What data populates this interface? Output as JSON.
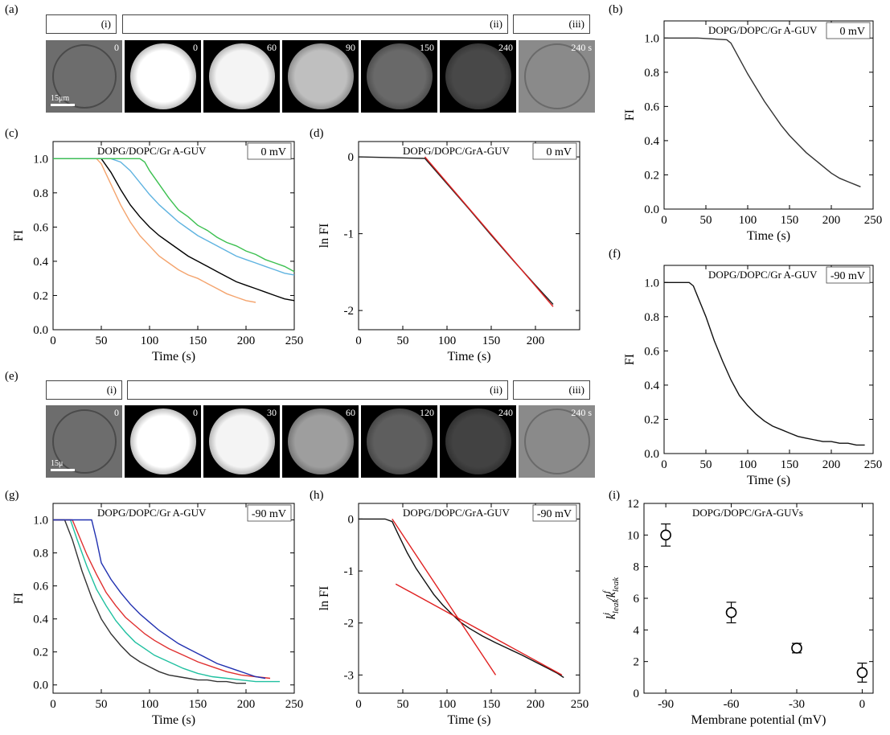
{
  "panels": {
    "a": "(a)",
    "b": "(b)",
    "c": "(c)",
    "d": "(d)",
    "e": "(e)",
    "f": "(f)",
    "g": "(g)",
    "h": "(h)",
    "i": "(i)"
  },
  "image_row_a": {
    "header_i": "(i)",
    "header_ii": "(ii)",
    "header_iii": "(iii)",
    "phase_left_time": "0",
    "scale_label": "15μm",
    "frames": [
      {
        "t": "0",
        "b": 1.0
      },
      {
        "t": "60",
        "b": 0.95
      },
      {
        "t": "90",
        "b": 0.7
      },
      {
        "t": "150",
        "b": 0.3
      },
      {
        "t": "240",
        "b": 0.15
      }
    ],
    "phase_right_time": "240 s"
  },
  "image_row_e": {
    "header_i": "(i)",
    "header_ii": "(ii)",
    "header_iii": "(iii)",
    "phase_left_time": "0",
    "scale_label": "15μ",
    "frames": [
      {
        "t": "0",
        "b": 1.0
      },
      {
        "t": "30",
        "b": 0.95
      },
      {
        "t": "60",
        "b": 0.55
      },
      {
        "t": "120",
        "b": 0.25
      },
      {
        "t": "240",
        "b": 0.12
      }
    ],
    "phase_right_time": "240 s"
  },
  "chart_data": [
    {
      "id": "b",
      "type": "line",
      "annotation": "DOPG/DOPC/Gr A-GUV",
      "potential": "0 mV",
      "xlabel": "Time (s)",
      "ylabel": "FI",
      "xlim": [
        0,
        250
      ],
      "ylim": [
        0,
        1.1
      ],
      "xticks": [
        0,
        50,
        100,
        150,
        200,
        250
      ],
      "yticks": [
        0.0,
        0.2,
        0.4,
        0.6,
        0.8,
        1.0
      ],
      "series": [
        {
          "color": "#333333",
          "x": [
            0,
            40,
            75,
            80,
            90,
            100,
            110,
            120,
            130,
            140,
            150,
            160,
            170,
            180,
            190,
            200,
            210,
            220,
            230,
            235
          ],
          "y": [
            1.0,
            1.0,
            0.99,
            0.97,
            0.88,
            0.79,
            0.71,
            0.63,
            0.56,
            0.49,
            0.43,
            0.38,
            0.33,
            0.29,
            0.25,
            0.21,
            0.18,
            0.16,
            0.14,
            0.13
          ]
        }
      ]
    },
    {
      "id": "c",
      "type": "line",
      "annotation": "DOPG/DOPC/Gr A-GUV",
      "potential": "0 mV",
      "xlabel": "Time (s)",
      "ylabel": "FI",
      "xlim": [
        0,
        250
      ],
      "ylim": [
        0,
        1.1
      ],
      "xticks": [
        0,
        50,
        100,
        150,
        200,
        250
      ],
      "yticks": [
        0.0,
        0.2,
        0.4,
        0.6,
        0.8,
        1.0
      ],
      "series": [
        {
          "color": "#f4a46e",
          "x": [
            0,
            45,
            50,
            60,
            70,
            80,
            90,
            100,
            110,
            120,
            130,
            140,
            150,
            160,
            170,
            180,
            190,
            200,
            210
          ],
          "y": [
            1.0,
            1.0,
            0.97,
            0.85,
            0.73,
            0.63,
            0.55,
            0.49,
            0.43,
            0.39,
            0.35,
            0.32,
            0.3,
            0.27,
            0.24,
            0.21,
            0.19,
            0.17,
            0.16
          ]
        },
        {
          "color": "#000000",
          "x": [
            0,
            50,
            55,
            60,
            70,
            80,
            90,
            100,
            110,
            120,
            130,
            140,
            150,
            160,
            170,
            180,
            190,
            200,
            210,
            220,
            230,
            240,
            250
          ],
          "y": [
            1.0,
            1.0,
            0.96,
            0.92,
            0.82,
            0.73,
            0.66,
            0.6,
            0.55,
            0.51,
            0.47,
            0.43,
            0.4,
            0.37,
            0.34,
            0.31,
            0.28,
            0.26,
            0.24,
            0.22,
            0.2,
            0.18,
            0.17
          ]
        },
        {
          "color": "#5fb3e0",
          "x": [
            0,
            60,
            70,
            80,
            90,
            100,
            110,
            120,
            130,
            140,
            150,
            160,
            170,
            180,
            190,
            200,
            210,
            220,
            230,
            240,
            250
          ],
          "y": [
            1.0,
            1.0,
            0.98,
            0.93,
            0.86,
            0.79,
            0.73,
            0.68,
            0.63,
            0.59,
            0.55,
            0.52,
            0.49,
            0.46,
            0.43,
            0.41,
            0.39,
            0.37,
            0.35,
            0.33,
            0.32
          ]
        },
        {
          "color": "#3cc050",
          "x": [
            0,
            90,
            95,
            100,
            110,
            120,
            130,
            140,
            150,
            160,
            170,
            180,
            190,
            200,
            210,
            220,
            230,
            240,
            250
          ],
          "y": [
            1.0,
            1.0,
            0.98,
            0.93,
            0.85,
            0.77,
            0.7,
            0.66,
            0.61,
            0.58,
            0.54,
            0.51,
            0.49,
            0.46,
            0.44,
            0.41,
            0.39,
            0.37,
            0.34
          ]
        }
      ]
    },
    {
      "id": "d",
      "type": "line",
      "annotation": "DOPG/DOPC/GrA-GUV",
      "potential": "0 mV",
      "xlabel": "Time (s)",
      "ylabel": "ln FI",
      "xlim": [
        0,
        250
      ],
      "ylim": [
        -2.25,
        0.2
      ],
      "xticks": [
        0,
        50,
        100,
        150,
        200
      ],
      "yticks": [
        0,
        -1,
        -2
      ],
      "series": [
        {
          "color": "#222222",
          "x": [
            0,
            40,
            75,
            100,
            125,
            150,
            175,
            200,
            220
          ],
          "y": [
            0,
            -0.01,
            -0.02,
            -0.35,
            -0.68,
            -1.02,
            -1.35,
            -1.67,
            -1.92
          ]
        },
        {
          "color": "#e02020",
          "x": [
            75,
            220
          ],
          "y": [
            0.0,
            -1.95
          ]
        }
      ]
    },
    {
      "id": "f",
      "type": "line",
      "annotation": "DOPG/DOPC/Gr A-GUV",
      "potential": "-90 mV",
      "xlabel": "Time (s)",
      "ylabel": "FI",
      "xlim": [
        0,
        250
      ],
      "ylim": [
        0,
        1.1
      ],
      "xticks": [
        0,
        50,
        100,
        150,
        200,
        250
      ],
      "yticks": [
        0.0,
        0.2,
        0.4,
        0.6,
        0.8,
        1.0
      ],
      "series": [
        {
          "color": "#111111",
          "x": [
            0,
            30,
            35,
            40,
            50,
            60,
            70,
            80,
            90,
            100,
            110,
            120,
            130,
            140,
            150,
            160,
            170,
            180,
            190,
            200,
            210,
            220,
            230,
            240
          ],
          "y": [
            1.0,
            1.0,
            0.98,
            0.92,
            0.8,
            0.66,
            0.54,
            0.43,
            0.34,
            0.28,
            0.23,
            0.19,
            0.16,
            0.14,
            0.12,
            0.1,
            0.09,
            0.08,
            0.07,
            0.07,
            0.06,
            0.06,
            0.05,
            0.05
          ]
        }
      ]
    },
    {
      "id": "g",
      "type": "line",
      "annotation": "DOPG/DOPC/Gr A-GUV",
      "potential": "-90 mV",
      "xlabel": "Time (s)",
      "ylabel": "FI",
      "xlim": [
        0,
        250
      ],
      "ylim": [
        -0.05,
        1.1
      ],
      "xticks": [
        0,
        50,
        100,
        150,
        200,
        250
      ],
      "yticks": [
        0.0,
        0.2,
        0.4,
        0.6,
        0.8,
        1.0
      ],
      "series": [
        {
          "color": "#333333",
          "x": [
            0,
            12,
            20,
            30,
            40,
            50,
            60,
            70,
            80,
            90,
            100,
            110,
            120,
            130,
            140,
            150,
            160,
            170,
            180,
            190,
            200
          ],
          "y": [
            1.0,
            1.0,
            0.88,
            0.69,
            0.53,
            0.4,
            0.31,
            0.24,
            0.18,
            0.14,
            0.11,
            0.08,
            0.06,
            0.05,
            0.04,
            0.03,
            0.03,
            0.02,
            0.02,
            0.01,
            0.01
          ]
        },
        {
          "color": "#20c0a0",
          "x": [
            0,
            18,
            25,
            35,
            45,
            55,
            65,
            75,
            85,
            95,
            105,
            120,
            135,
            150,
            165,
            180,
            195,
            210,
            225,
            235
          ],
          "y": [
            1.0,
            1.0,
            0.88,
            0.72,
            0.58,
            0.48,
            0.39,
            0.32,
            0.26,
            0.22,
            0.18,
            0.14,
            0.1,
            0.07,
            0.05,
            0.04,
            0.03,
            0.02,
            0.02,
            0.02
          ]
        },
        {
          "color": "#e03030",
          "x": [
            0,
            20,
            25,
            35,
            45,
            55,
            65,
            75,
            85,
            95,
            105,
            120,
            135,
            150,
            165,
            180,
            195,
            210,
            225
          ],
          "y": [
            1.0,
            1.0,
            0.93,
            0.79,
            0.67,
            0.56,
            0.48,
            0.41,
            0.36,
            0.31,
            0.27,
            0.22,
            0.18,
            0.14,
            0.11,
            0.08,
            0.06,
            0.05,
            0.04
          ]
        },
        {
          "color": "#2030b0",
          "x": [
            0,
            40,
            45,
            50,
            60,
            70,
            80,
            90,
            100,
            110,
            120,
            130,
            140,
            150,
            160,
            170,
            180,
            190,
            200,
            210,
            220
          ],
          "y": [
            1.0,
            1.0,
            0.88,
            0.74,
            0.64,
            0.56,
            0.49,
            0.43,
            0.38,
            0.33,
            0.29,
            0.25,
            0.22,
            0.19,
            0.16,
            0.13,
            0.11,
            0.09,
            0.07,
            0.05,
            0.04
          ]
        }
      ]
    },
    {
      "id": "h",
      "type": "line",
      "annotation": "DOPG/DOPC/GrA-GUV",
      "potential": "-90 mV",
      "xlabel": "Time (s)",
      "ylabel": "ln FI",
      "xlim": [
        0,
        250
      ],
      "ylim": [
        -3.35,
        0.3
      ],
      "xticks": [
        0,
        50,
        100,
        150,
        200,
        250
      ],
      "yticks": [
        0,
        -1,
        -2,
        -3
      ],
      "series": [
        {
          "color": "#111111",
          "x": [
            0,
            30,
            38,
            45,
            55,
            65,
            75,
            85,
            95,
            105,
            115,
            125,
            140,
            155,
            170,
            185,
            200,
            215,
            225,
            232
          ],
          "y": [
            0,
            0,
            -0.05,
            -0.3,
            -0.65,
            -0.95,
            -1.2,
            -1.45,
            -1.65,
            -1.82,
            -1.98,
            -2.1,
            -2.25,
            -2.38,
            -2.5,
            -2.62,
            -2.75,
            -2.88,
            -2.97,
            -3.05
          ]
        },
        {
          "color": "#e02020",
          "x": [
            38,
            155
          ],
          "y": [
            0.0,
            -3.0
          ]
        },
        {
          "color": "#e02020",
          "x": [
            42,
            230
          ],
          "y": [
            -1.25,
            -3.0
          ]
        }
      ]
    },
    {
      "id": "i",
      "type": "scatter",
      "annotation": "DOPG/DOPC/GrA-GUVs",
      "xlabel": "Membrane potential (mV)",
      "xlim": [
        -100,
        5
      ],
      "ylim": [
        0,
        12
      ],
      "xticks": [
        -90,
        -60,
        -30,
        0
      ],
      "yticks": [
        0,
        2,
        4,
        6,
        8,
        10,
        12
      ],
      "points": [
        {
          "x": -90,
          "y": 10.0,
          "err": 0.7
        },
        {
          "x": -60,
          "y": 5.1,
          "err": 0.65
        },
        {
          "x": -30,
          "y": 2.85,
          "err": 0.3
        },
        {
          "x": 0,
          "y": 1.3,
          "err": 0.6
        }
      ]
    }
  ]
}
